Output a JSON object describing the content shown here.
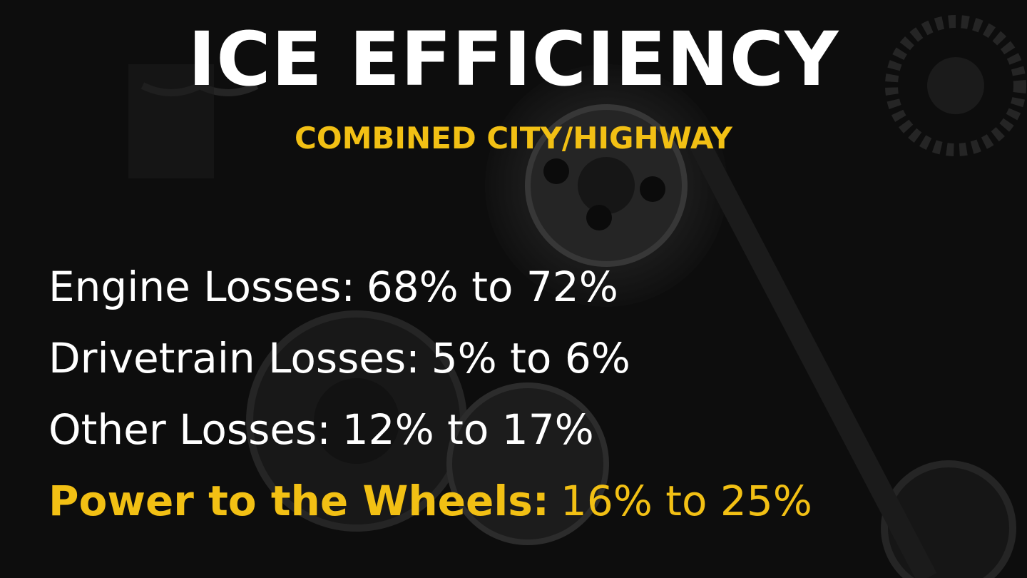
{
  "title": "ICE EFFICIENCY",
  "subtitle": "COMBINED CITY/HIGHWAY",
  "items": [
    {
      "label": "Engine Losses:",
      "value": "68% to 72%"
    },
    {
      "label": "Drivetrain Losses:",
      "value": "5% to 6%"
    },
    {
      "label": "Other Losses:",
      "value": "12% to 17%"
    },
    {
      "label": "Power to the Wheels:",
      "value": "16% to 25%",
      "highlight": true
    }
  ]
}
